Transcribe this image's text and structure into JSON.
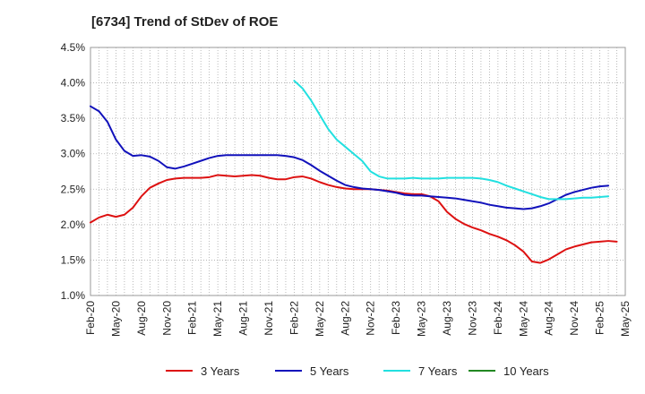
{
  "chart_data": {
    "type": "line",
    "title": "[6734]  Trend of StDev of ROE",
    "xlabel": "",
    "ylabel": "",
    "x_ticks": [
      "Feb-20",
      "May-20",
      "Aug-20",
      "Nov-20",
      "Feb-21",
      "May-21",
      "Aug-21",
      "Nov-21",
      "Feb-22",
      "May-22",
      "Aug-22",
      "Nov-22",
      "Feb-23",
      "May-23",
      "Aug-23",
      "Nov-23",
      "Feb-24",
      "May-24",
      "Aug-24",
      "Nov-24",
      "Feb-25",
      "May-25"
    ],
    "y_ticks": [
      "1.0%",
      "1.5%",
      "2.0%",
      "2.5%",
      "3.0%",
      "3.5%",
      "4.0%",
      "4.5%"
    ],
    "ylim": [
      1.0,
      4.5
    ],
    "grid": true,
    "legend_position": "bottom",
    "series": [
      {
        "name": "3 Years",
        "color": "#dd1111",
        "start_month_index": 0,
        "values": [
          2.03,
          2.1,
          2.14,
          2.11,
          2.14,
          2.24,
          2.4,
          2.52,
          2.58,
          2.63,
          2.65,
          2.66,
          2.66,
          2.66,
          2.67,
          2.7,
          2.69,
          2.68,
          2.69,
          2.7,
          2.69,
          2.66,
          2.64,
          2.64,
          2.67,
          2.68,
          2.65,
          2.6,
          2.56,
          2.53,
          2.51,
          2.5,
          2.5,
          2.5,
          2.49,
          2.48,
          2.46,
          2.44,
          2.43,
          2.43,
          2.4,
          2.33,
          2.18,
          2.08,
          2.01,
          1.96,
          1.92,
          1.87,
          1.83,
          1.78,
          1.71,
          1.62,
          1.48,
          1.46,
          1.51,
          1.58,
          1.65,
          1.69,
          1.72,
          1.75,
          1.76,
          1.77,
          1.76
        ]
      },
      {
        "name": "5 Years",
        "color": "#1111bb",
        "start_month_index": 0,
        "values": [
          3.67,
          3.6,
          3.45,
          3.2,
          3.04,
          2.97,
          2.98,
          2.96,
          2.9,
          2.81,
          2.79,
          2.82,
          2.86,
          2.9,
          2.94,
          2.97,
          2.98,
          2.98,
          2.98,
          2.98,
          2.98,
          2.98,
          2.98,
          2.97,
          2.95,
          2.91,
          2.84,
          2.76,
          2.69,
          2.62,
          2.56,
          2.53,
          2.51,
          2.5,
          2.49,
          2.47,
          2.45,
          2.42,
          2.41,
          2.41,
          2.4,
          2.39,
          2.38,
          2.37,
          2.35,
          2.33,
          2.31,
          2.28,
          2.26,
          2.24,
          2.23,
          2.22,
          2.23,
          2.26,
          2.3,
          2.36,
          2.42,
          2.46,
          2.49,
          2.52,
          2.54,
          2.55
        ]
      },
      {
        "name": "7 Years",
        "color": "#22e0e0",
        "start_month_index": 24,
        "values": [
          4.03,
          3.92,
          3.75,
          3.55,
          3.35,
          3.2,
          3.1,
          3.0,
          2.9,
          2.75,
          2.68,
          2.65,
          2.65,
          2.65,
          2.66,
          2.65,
          2.65,
          2.65,
          2.66,
          2.66,
          2.66,
          2.66,
          2.65,
          2.63,
          2.6,
          2.55,
          2.51,
          2.47,
          2.43,
          2.39,
          2.36,
          2.36,
          2.36,
          2.37,
          2.38,
          2.38,
          2.39,
          2.4
        ]
      },
      {
        "name": "10 Years",
        "color": "#228822",
        "start_month_index": 0,
        "values": []
      }
    ]
  }
}
